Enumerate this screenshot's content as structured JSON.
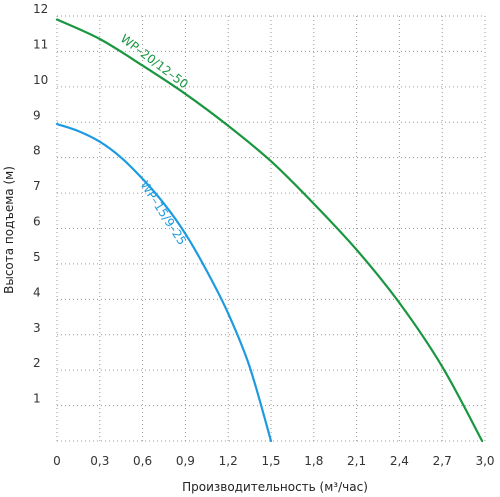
{
  "chart_data": {
    "type": "line",
    "xlabel": "Производительность (м³/час)",
    "ylabel": "Высота подъема (м)",
    "xlim": [
      0,
      3.0
    ],
    "ylim": [
      0,
      12
    ],
    "x_ticks": [
      "0",
      "0,3",
      "0,6",
      "0,9",
      "1,2",
      "1,5",
      "1,8",
      "2,1",
      "2,4",
      "2,7",
      "3,0"
    ],
    "y_ticks": [
      "1",
      "2",
      "3",
      "4",
      "5",
      "6",
      "7",
      "8",
      "9",
      "10",
      "11",
      "12"
    ],
    "grid": true,
    "series": [
      {
        "name": "WP–20/12–50",
        "color": "#1a9641",
        "x": [
          0,
          0.3,
          0.6,
          0.9,
          1.2,
          1.5,
          1.8,
          2.1,
          2.4,
          2.7,
          2.98
        ],
        "y": [
          11.9,
          11.35,
          10.6,
          9.8,
          8.9,
          7.9,
          6.7,
          5.4,
          3.9,
          2.1,
          0
        ]
      },
      {
        "name": "WP–15/9–25",
        "color": "#1e9be0",
        "x": [
          0,
          0.15,
          0.3,
          0.45,
          0.6,
          0.75,
          0.9,
          1.05,
          1.2,
          1.35,
          1.5
        ],
        "y": [
          8.95,
          8.75,
          8.45,
          8.0,
          7.4,
          6.7,
          5.85,
          4.8,
          3.6,
          2.1,
          0
        ]
      }
    ]
  }
}
